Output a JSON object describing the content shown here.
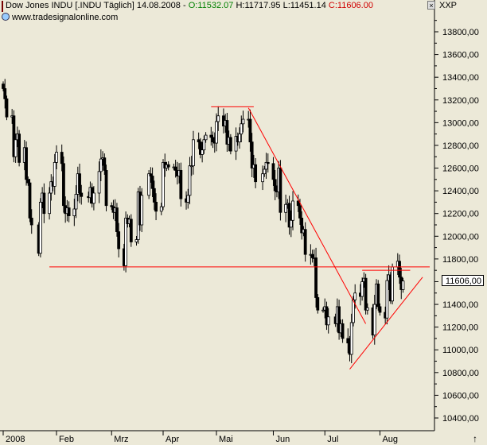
{
  "header": {
    "title": "Dow Jones INDU [.INDU  Täglich] 14.08.2008",
    "open": "O:11532.07",
    "high": "H:11717.95",
    "low": "L:11451.14",
    "close": "C:11606.00",
    "source": "www.tradesignalonline.com",
    "symbol_box": "XXP",
    "close_glyph": "×"
  },
  "last_price_label": "11606,00",
  "scroll_arrow": "↑",
  "colors": {
    "background": "#ece9d8",
    "candle": "#000000",
    "trendline": "#ff0000"
  },
  "chart_data": {
    "type": "candlestick",
    "title": "",
    "xlabel": "",
    "ylabel": "",
    "ylim": [
      10300,
      14100
    ],
    "y_ticks": [
      10400,
      10600,
      10800,
      11000,
      11200,
      11400,
      11600,
      11800,
      12000,
      12200,
      12400,
      12600,
      12800,
      13000,
      13200,
      13400,
      13600,
      13800
    ],
    "y_tick_labels": [
      "10400,00",
      "10600,00",
      "10800,00",
      "11000,00",
      "11200,00",
      "11400,00",
      "11600,00",
      "11800,00",
      "12000,00",
      "12200,00",
      "12400,00",
      "12600,00",
      "12800,00",
      "13000,00",
      "13200,00",
      "13400,00",
      "13600,00",
      "13800,00"
    ],
    "x_labels": [
      "2008",
      "Feb",
      "Mrz",
      "Apr",
      "Mai",
      "Jun",
      "Jul",
      "Aug"
    ],
    "x_label_positions": [
      "2008-01-02",
      "2008-02-01",
      "2008-03-03",
      "2008-04-01",
      "2008-05-01",
      "2008-06-02",
      "2008-07-01",
      "2008-08-01"
    ],
    "grid": false,
    "series_close": [
      [
        "2008-01-02",
        13300
      ],
      [
        "2008-01-03",
        13210
      ],
      [
        "2008-01-04",
        13050
      ],
      [
        "2008-01-07",
        13060
      ],
      [
        "2008-01-08",
        12700
      ],
      [
        "2008-01-09",
        12850
      ],
      [
        "2008-01-10",
        12900
      ],
      [
        "2008-01-11",
        12650
      ],
      [
        "2008-01-14",
        12780
      ],
      [
        "2008-01-15",
        12500
      ],
      [
        "2008-01-16",
        12470
      ],
      [
        "2008-01-17",
        12160
      ],
      [
        "2008-01-18",
        12100
      ],
      [
        "2008-01-22",
        11850
      ],
      [
        "2008-01-23",
        12300
      ],
      [
        "2008-01-24",
        12380
      ],
      [
        "2008-01-25",
        12200
      ],
      [
        "2008-01-28",
        12380
      ],
      [
        "2008-01-29",
        12480
      ],
      [
        "2008-01-30",
        12440
      ],
      [
        "2008-01-31",
        12650
      ],
      [
        "2008-02-01",
        12740
      ],
      [
        "2008-02-04",
        12640
      ],
      [
        "2008-02-05",
        12270
      ],
      [
        "2008-02-06",
        12200
      ],
      [
        "2008-02-07",
        12250
      ],
      [
        "2008-02-08",
        12180
      ],
      [
        "2008-02-11",
        12240
      ],
      [
        "2008-02-12",
        12370
      ],
      [
        "2008-02-13",
        12550
      ],
      [
        "2008-02-14",
        12380
      ],
      [
        "2008-02-15",
        12350
      ],
      [
        "2008-02-19",
        12340
      ],
      [
        "2008-02-20",
        12430
      ],
      [
        "2008-02-21",
        12290
      ],
      [
        "2008-02-22",
        12380
      ],
      [
        "2008-02-25",
        12570
      ],
      [
        "2008-02-26",
        12680
      ],
      [
        "2008-02-27",
        12690
      ],
      [
        "2008-02-28",
        12580
      ],
      [
        "2008-02-29",
        12270
      ],
      [
        "2008-03-03",
        12260
      ],
      [
        "2008-03-04",
        12210
      ],
      [
        "2008-03-05",
        12250
      ],
      [
        "2008-03-06",
        12040
      ],
      [
        "2008-03-07",
        11890
      ],
      [
        "2008-03-10",
        11740
      ],
      [
        "2008-03-11",
        12160
      ],
      [
        "2008-03-12",
        12110
      ],
      [
        "2008-03-13",
        12150
      ],
      [
        "2008-03-14",
        11950
      ],
      [
        "2008-03-17",
        11970
      ],
      [
        "2008-03-18",
        12390
      ],
      [
        "2008-03-19",
        12100
      ],
      [
        "2008-03-20",
        12360
      ],
      [
        "2008-03-24",
        12550
      ],
      [
        "2008-03-25",
        12530
      ],
      [
        "2008-03-26",
        12420
      ],
      [
        "2008-03-27",
        12300
      ],
      [
        "2008-03-28",
        12220
      ],
      [
        "2008-03-31",
        12260
      ],
      [
        "2008-04-01",
        12650
      ],
      [
        "2008-04-02",
        12600
      ],
      [
        "2008-04-03",
        12630
      ],
      [
        "2008-04-04",
        12610
      ],
      [
        "2008-04-07",
        12610
      ],
      [
        "2008-04-08",
        12580
      ],
      [
        "2008-04-09",
        12530
      ],
      [
        "2008-04-10",
        12580
      ],
      [
        "2008-04-11",
        12330
      ],
      [
        "2008-04-14",
        12300
      ],
      [
        "2008-04-15",
        12360
      ],
      [
        "2008-04-16",
        12620
      ],
      [
        "2008-04-17",
        12620
      ],
      [
        "2008-04-18",
        12850
      ],
      [
        "2008-04-21",
        12830
      ],
      [
        "2008-04-22",
        12720
      ],
      [
        "2008-04-23",
        12760
      ],
      [
        "2008-04-24",
        12850
      ],
      [
        "2008-04-25",
        12890
      ],
      [
        "2008-04-28",
        12870
      ],
      [
        "2008-04-29",
        12830
      ],
      [
        "2008-04-30",
        12820
      ],
      [
        "2008-05-01",
        13010
      ],
      [
        "2008-05-02",
        13060
      ],
      [
        "2008-05-05",
        12970
      ],
      [
        "2008-05-06",
        13020
      ],
      [
        "2008-05-07",
        12810
      ],
      [
        "2008-05-08",
        12870
      ],
      [
        "2008-05-09",
        12750
      ],
      [
        "2008-05-12",
        12880
      ],
      [
        "2008-05-13",
        12830
      ],
      [
        "2008-05-14",
        12900
      ],
      [
        "2008-05-15",
        12990
      ],
      [
        "2008-05-16",
        13030
      ],
      [
        "2008-05-19",
        13030
      ],
      [
        "2008-05-20",
        12830
      ],
      [
        "2008-05-21",
        12600
      ],
      [
        "2008-05-22",
        12630
      ],
      [
        "2008-05-23",
        12480
      ],
      [
        "2008-05-27",
        12550
      ],
      [
        "2008-05-28",
        12590
      ],
      [
        "2008-05-29",
        12650
      ],
      [
        "2008-05-30",
        12640
      ],
      [
        "2008-06-02",
        12500
      ],
      [
        "2008-06-03",
        12400
      ],
      [
        "2008-06-04",
        12390
      ],
      [
        "2008-06-05",
        12600
      ],
      [
        "2008-06-06",
        12210
      ],
      [
        "2008-06-09",
        12280
      ],
      [
        "2008-06-10",
        12290
      ],
      [
        "2008-06-11",
        12080
      ],
      [
        "2008-06-12",
        12140
      ],
      [
        "2008-06-13",
        12310
      ],
      [
        "2008-06-16",
        12270
      ],
      [
        "2008-06-17",
        12160
      ],
      [
        "2008-06-18",
        12030
      ],
      [
        "2008-06-19",
        12060
      ],
      [
        "2008-06-20",
        11840
      ],
      [
        "2008-06-23",
        11840
      ],
      [
        "2008-06-24",
        11810
      ],
      [
        "2008-06-25",
        11810
      ],
      [
        "2008-06-26",
        11460
      ],
      [
        "2008-06-27",
        11350
      ],
      [
        "2008-06-30",
        11350
      ],
      [
        "2008-07-01",
        11380
      ],
      [
        "2008-07-02",
        11220
      ],
      [
        "2008-07-03",
        11290
      ],
      [
        "2008-07-07",
        11230
      ],
      [
        "2008-07-08",
        11380
      ],
      [
        "2008-07-09",
        11150
      ],
      [
        "2008-07-10",
        11230
      ],
      [
        "2008-07-11",
        11100
      ],
      [
        "2008-07-14",
        11060
      ],
      [
        "2008-07-15",
        10960
      ],
      [
        "2008-07-16",
        11240
      ],
      [
        "2008-07-17",
        11440
      ],
      [
        "2008-07-18",
        11500
      ],
      [
        "2008-07-21",
        11470
      ],
      [
        "2008-07-22",
        11600
      ],
      [
        "2008-07-23",
        11630
      ],
      [
        "2008-07-24",
        11350
      ],
      [
        "2008-07-25",
        11370
      ],
      [
        "2008-07-28",
        11130
      ],
      [
        "2008-07-29",
        11400
      ],
      [
        "2008-07-30",
        11580
      ],
      [
        "2008-07-31",
        11380
      ],
      [
        "2008-08-01",
        11330
      ],
      [
        "2008-08-04",
        11280
      ],
      [
        "2008-08-05",
        11610
      ],
      [
        "2008-08-06",
        11660
      ],
      [
        "2008-08-07",
        11430
      ],
      [
        "2008-08-08",
        11730
      ],
      [
        "2008-08-11",
        11780
      ],
      [
        "2008-08-12",
        11640
      ],
      [
        "2008-08-13",
        11530
      ],
      [
        "2008-08-14",
        11606
      ]
    ],
    "annotations": [
      {
        "type": "trendline",
        "from": [
          "2008-01-28",
          11730
        ],
        "to": [
          "2008-08-29",
          11730
        ]
      },
      {
        "type": "trendline",
        "from": [
          "2008-04-28",
          13140
        ],
        "to": [
          "2008-05-22",
          13140
        ]
      },
      {
        "type": "trendline",
        "from": [
          "2008-05-19",
          13130
        ],
        "to": [
          "2008-07-24",
          11230
        ]
      },
      {
        "type": "trendline",
        "from": [
          "2008-07-15",
          10830
        ],
        "to": [
          "2008-08-25",
          11640
        ]
      },
      {
        "type": "trendline",
        "from": [
          "2008-07-22",
          11700
        ],
        "to": [
          "2008-08-18",
          11700
        ]
      }
    ]
  }
}
